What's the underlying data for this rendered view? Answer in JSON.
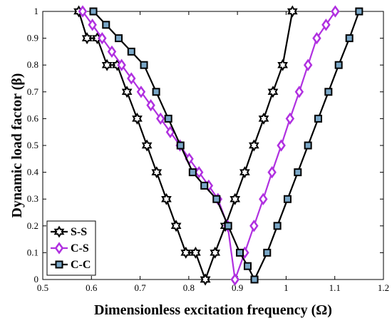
{
  "chart_data": {
    "type": "line",
    "xlabel": "Dimensionless excitation frequency (Ω)",
    "ylabel": "Dynamic load factor (β)",
    "xlim": [
      0.5,
      1.2
    ],
    "ylim": [
      0,
      1
    ],
    "xticks": [
      "0.5",
      "0.6",
      "0.7",
      "0.8",
      "0.9",
      "1",
      "1.1",
      "1.2"
    ],
    "yticks": [
      "0",
      "0.1",
      "0.2",
      "0.3",
      "0.4",
      "0.5",
      "0.6",
      "0.7",
      "0.8",
      "0.9",
      "1"
    ],
    "grid": false,
    "legend_position": "bottom-left",
    "series": [
      {
        "name": "S-S",
        "color": "#000000",
        "marker": "hexagram",
        "marker_fill": "#ffffff",
        "left": {
          "x": [
            0.574,
            0.591,
            0.612,
            0.632,
            0.653,
            0.673,
            0.694,
            0.714,
            0.734,
            0.754,
            0.774,
            0.794,
            0.814,
            0.834
          ],
          "y": [
            1.0,
            0.9,
            0.9,
            0.8,
            0.8,
            0.7,
            0.6,
            0.5,
            0.4,
            0.3,
            0.2,
            0.1,
            0.1,
            0.0
          ]
        },
        "right": {
          "x": [
            0.834,
            0.854,
            0.875,
            0.895,
            0.915,
            0.934,
            0.954,
            0.973,
            0.993,
            1.013
          ],
          "y": [
            0.0,
            0.1,
            0.2,
            0.3,
            0.4,
            0.5,
            0.6,
            0.7,
            0.8,
            1.0
          ]
        }
      },
      {
        "name": "C-S",
        "color": "#b030e0",
        "marker": "diamond",
        "marker_fill": "#ffffff",
        "left": {
          "x": [
            0.582,
            0.602,
            0.622,
            0.642,
            0.662,
            0.682,
            0.702,
            0.722,
            0.742,
            0.762,
            0.782,
            0.801,
            0.821,
            0.841,
            0.86,
            0.88,
            0.895
          ],
          "y": [
            1.0,
            0.95,
            0.9,
            0.85,
            0.8,
            0.75,
            0.7,
            0.65,
            0.6,
            0.55,
            0.5,
            0.45,
            0.4,
            0.35,
            0.3,
            0.2,
            0.0
          ]
        },
        "right": {
          "x": [
            0.895,
            0.915,
            0.934,
            0.953,
            0.971,
            0.99,
            1.008,
            1.027,
            1.045,
            1.063,
            1.082,
            1.101
          ],
          "y": [
            0.0,
            0.1,
            0.2,
            0.3,
            0.4,
            0.5,
            0.6,
            0.7,
            0.8,
            0.9,
            0.95,
            1.0
          ]
        }
      },
      {
        "name": "C-C",
        "color": "#000000",
        "marker": "square",
        "marker_fill": "#7aa7c7",
        "left": {
          "x": [
            0.604,
            0.63,
            0.656,
            0.682,
            0.708,
            0.733,
            0.758,
            0.783,
            0.808,
            0.832,
            0.857,
            0.881,
            0.905,
            0.921,
            0.935
          ],
          "y": [
            1.0,
            0.95,
            0.9,
            0.85,
            0.8,
            0.7,
            0.6,
            0.5,
            0.4,
            0.35,
            0.3,
            0.2,
            0.1,
            0.05,
            0.0
          ]
        },
        "right": {
          "x": [
            0.935,
            0.961,
            0.982,
            1.003,
            1.024,
            1.045,
            1.066,
            1.087,
            1.108,
            1.13,
            1.15
          ],
          "y": [
            0.0,
            0.1,
            0.2,
            0.3,
            0.4,
            0.5,
            0.6,
            0.7,
            0.8,
            0.9,
            1.0
          ]
        }
      }
    ]
  }
}
